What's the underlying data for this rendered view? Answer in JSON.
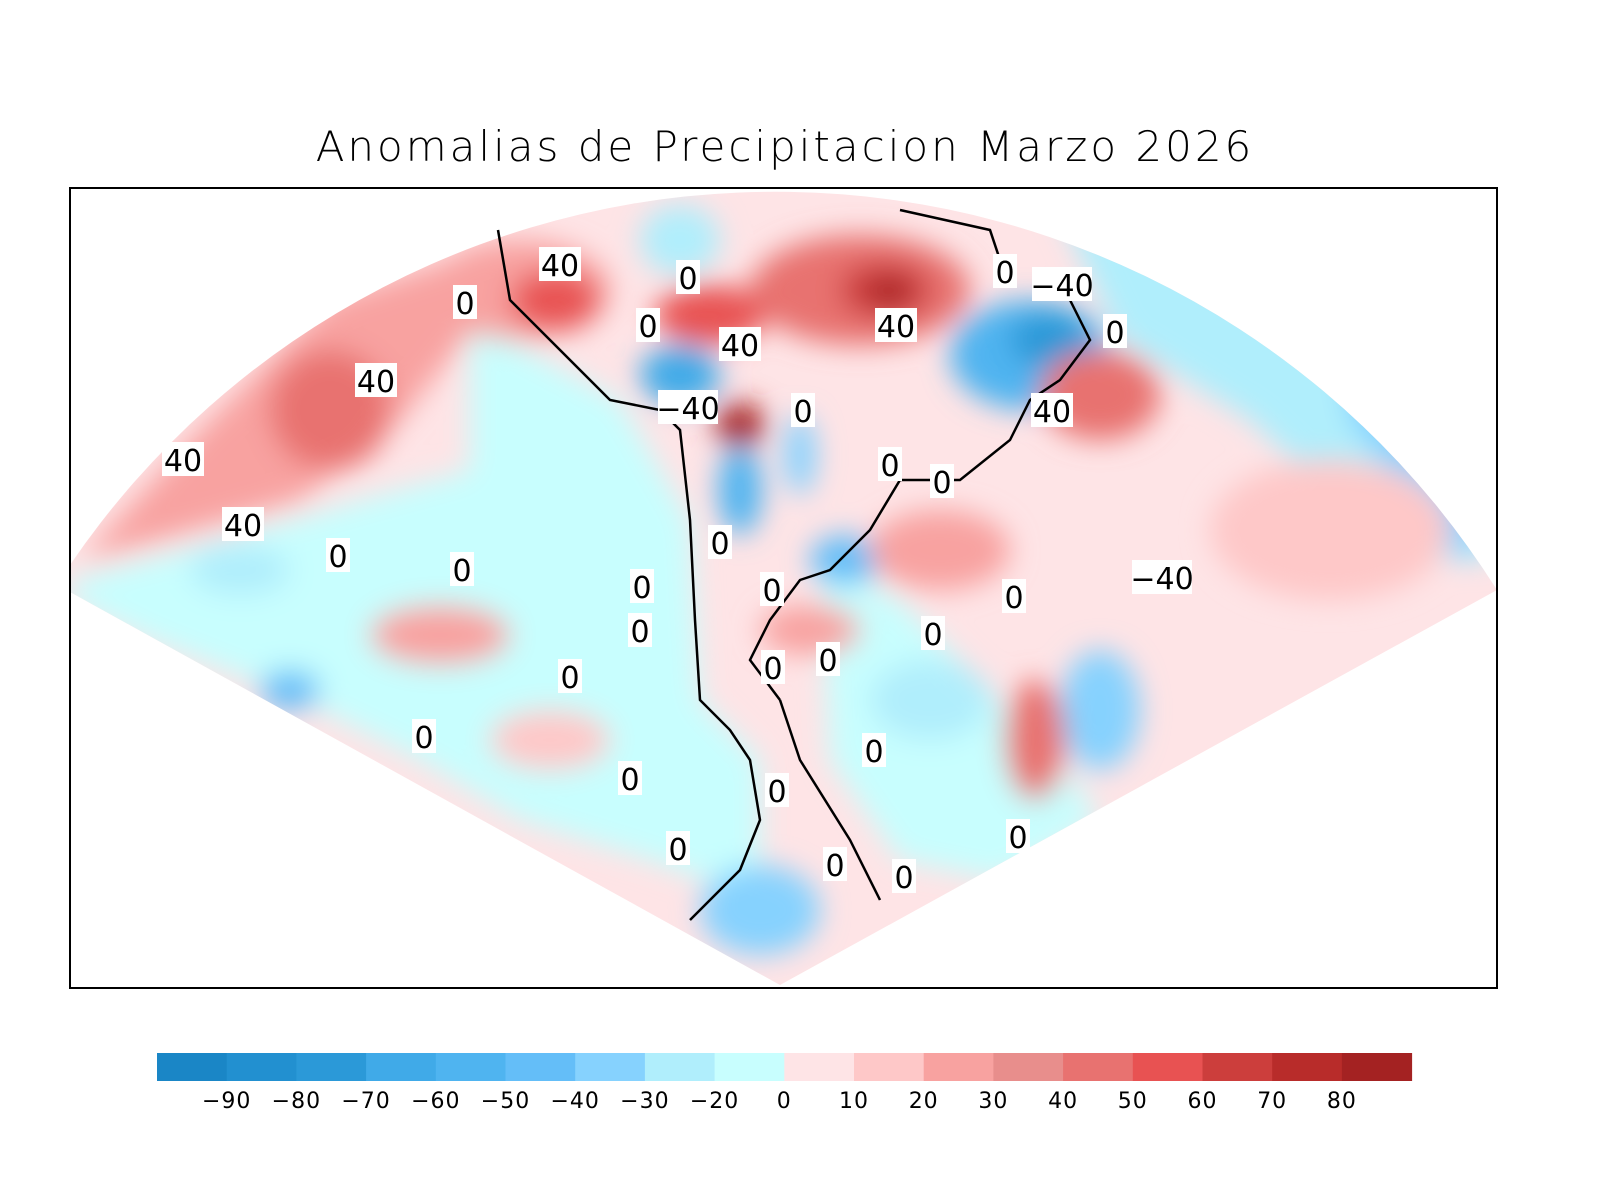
{
  "title": "Anomalias de Precipitacion Marzo 2026",
  "colorbar": {
    "colors": [
      "#1a86c6",
      "#2290d0",
      "#2b99d8",
      "#40aae8",
      "#4fb4f0",
      "#64bef8",
      "#86d2fe",
      "#b0eefc",
      "#c8fefe",
      "#fee4e6",
      "#fec8c8",
      "#f8a2a0",
      "#e88e8c",
      "#e87270",
      "#e85252",
      "#cc3e3c",
      "#b82c2a",
      "#a42222"
    ],
    "labels": [
      "−90",
      "−80",
      "−70",
      "−60",
      "−50",
      "−40",
      "−30",
      "−20",
      "0",
      "10",
      "20",
      "30",
      "40",
      "50",
      "60",
      "70",
      "80"
    ]
  },
  "contour_labels": [
    "40",
    "0",
    "0",
    "0",
    "40",
    "40",
    "0",
    "−40",
    "40",
    "0",
    "40",
    "40",
    "0",
    "−40",
    "0",
    "0",
    "40",
    "0",
    "0",
    "0",
    "0",
    "−40",
    "0",
    "0",
    "0",
    "0",
    "0",
    "0",
    "0",
    "0",
    "0",
    "0",
    "0",
    "0",
    "0",
    "0",
    "0"
  ]
}
